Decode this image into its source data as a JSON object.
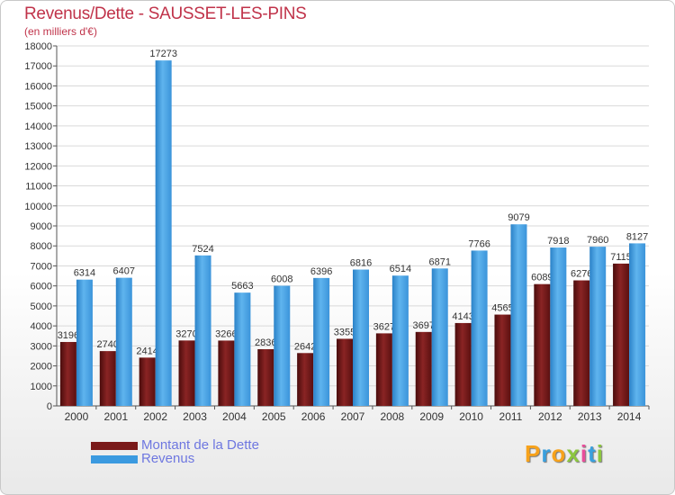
{
  "title": "Revenus/Dette - SAUSSET-LES-PINS",
  "subtitle": "(en milliers d'€)",
  "brand": {
    "letters": [
      "P",
      "r",
      "o",
      "x",
      "i",
      "t",
      "i"
    ],
    "colors": [
      "#f7a21b",
      "#3aa0de",
      "#f7a21b",
      "#8cc63f",
      "#e94e9b",
      "#3aa0de",
      "#8cc63f"
    ]
  },
  "legend": [
    {
      "name": "Montant de la Dette",
      "color": "#7a1a1a"
    },
    {
      "name": "Revenus",
      "color": "#3b9ae0"
    }
  ],
  "chart_data": {
    "type": "bar",
    "categories": [
      "2000",
      "2001",
      "2002",
      "2003",
      "2004",
      "2005",
      "2006",
      "2007",
      "2008",
      "2009",
      "2010",
      "2011",
      "2012",
      "2013",
      "2014"
    ],
    "series": [
      {
        "name": "Montant de la Dette",
        "color": "#7a1a1a",
        "values": [
          3196,
          2740,
          2414,
          3270,
          3266,
          2836,
          2642,
          3355,
          3627,
          3697,
          4143,
          4565,
          6089,
          6276,
          7115
        ],
        "labels": [
          "3196",
          "2740",
          "2414",
          "3270",
          "3266",
          "2836",
          "2642",
          "3355",
          "3627",
          "3697",
          "4143",
          "4565",
          "6089",
          "6276",
          "7115"
        ]
      },
      {
        "name": "Revenus",
        "color": "#3b9ae0",
        "values": [
          6314,
          6407,
          17273,
          7524,
          5663,
          6008,
          6396,
          6816,
          6514,
          6871,
          7766,
          9079,
          7918,
          7960,
          8127
        ],
        "labels": [
          "6314",
          "6407",
          "17273",
          "7524",
          "5663",
          "6008",
          "6396",
          "6816",
          "6514",
          "6871",
          "7766",
          "9079",
          "7918",
          "7960",
          "8127"
        ]
      }
    ],
    "ylim": [
      0,
      18000
    ],
    "yticks": [
      0,
      1000,
      2000,
      3000,
      4000,
      5000,
      6000,
      7000,
      8000,
      9000,
      10000,
      11000,
      12000,
      13000,
      14000,
      15000,
      16000,
      17000,
      18000
    ],
    "grid": true,
    "legend_position": "bottom-left"
  }
}
